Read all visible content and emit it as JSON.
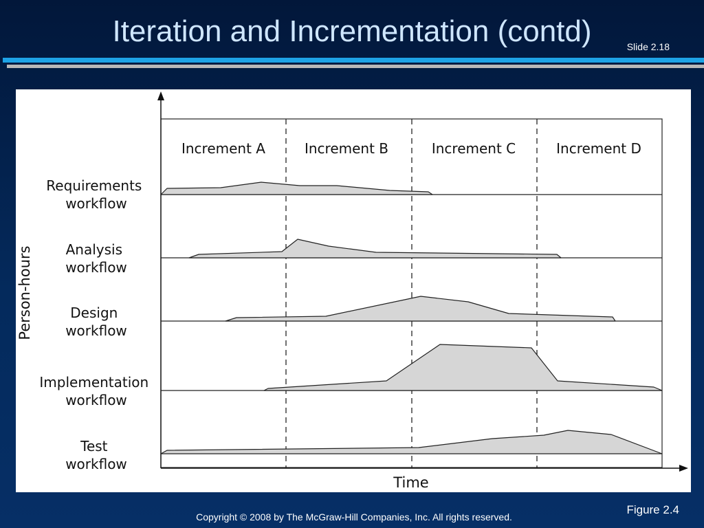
{
  "slide": {
    "title": "Iteration and Incrementation (contd)",
    "number": "Slide 2.18",
    "figure_caption": "Figure 2.4",
    "copyright": "Copyright © 2008 by The McGraw-Hill Companies, Inc.  All rights reserved."
  },
  "colors": {
    "background": "#042a5c",
    "title": "#cfe6ff",
    "rule_blue": "#1ea3e6",
    "rule_gray": "#b8b8b8",
    "fill": "#d6d6d6"
  },
  "diagram": {
    "y_axis_label": "Person-hours",
    "x_axis_label": "Time",
    "increments": [
      "Increment A",
      "Increment B",
      "Increment C",
      "Increment D"
    ],
    "workflows": [
      {
        "name_line1": "Requirements",
        "name_line2": "workflow"
      },
      {
        "name_line1": "Analysis",
        "name_line2": "workflow"
      },
      {
        "name_line1": "Design",
        "name_line2": "workflow"
      },
      {
        "name_line1": "Implementation",
        "name_line2": "workflow"
      },
      {
        "name_line1": "Test",
        "name_line2": "workflow"
      }
    ]
  }
}
